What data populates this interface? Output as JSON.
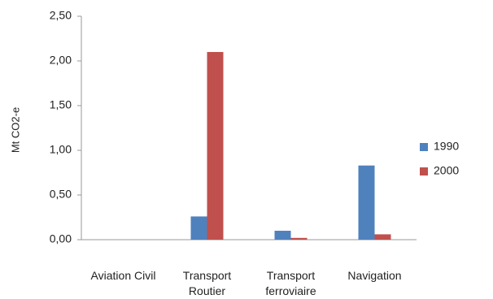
{
  "chart_data": {
    "type": "bar",
    "y_label": "Mt CO2-e",
    "categories": [
      "Aviation Civil",
      "Transport Routier",
      "Transport ferroviaire",
      "Navigation"
    ],
    "series": [
      {
        "name": "1990",
        "color": "#4f81bd",
        "values": [
          0,
          0.26,
          0.1,
          0.83
        ]
      },
      {
        "name": "2000",
        "color": "#c0504d",
        "values": [
          0,
          2.1,
          0.02,
          0.06
        ]
      }
    ],
    "ylim": [
      0,
      2.5
    ],
    "yticks": [
      {
        "value": 0,
        "label": "0,00"
      },
      {
        "value": 0.5,
        "label": "0,50"
      },
      {
        "value": 1,
        "label": "1,00"
      },
      {
        "value": 1.5,
        "label": "1,50"
      },
      {
        "value": 2,
        "label": "2,00"
      },
      {
        "value": 2.5,
        "label": "2,50"
      }
    ],
    "legend": "right"
  }
}
